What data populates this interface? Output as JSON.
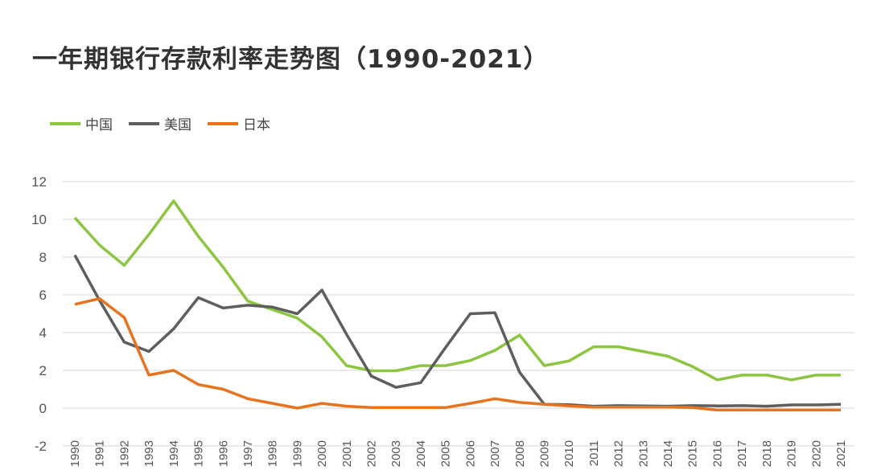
{
  "chart_data": {
    "type": "line",
    "title": "一年期银行存款利率走势图（1990-2021）",
    "xlabel": "",
    "ylabel": "",
    "ylim": [
      -2,
      12
    ],
    "yticks": [
      -2,
      0,
      2,
      4,
      6,
      8,
      10,
      12
    ],
    "grid": true,
    "legend_position": "top-left",
    "x": [
      "1990",
      "1991",
      "1992",
      "1993",
      "1994",
      "1995",
      "1996",
      "1997",
      "1998",
      "1999",
      "2000",
      "2001",
      "2002",
      "2003",
      "2004",
      "2005",
      "2006",
      "2007",
      "2008",
      "2009",
      "2010",
      "2011",
      "2012",
      "2013",
      "2014",
      "2015",
      "2016",
      "2017",
      "2018",
      "2019",
      "2020",
      "2021"
    ],
    "series": [
      {
        "name": "中国",
        "color": "#8cc53f",
        "values": [
          10.08,
          8.64,
          7.56,
          9.2,
          10.98,
          9.1,
          7.47,
          5.67,
          5.22,
          4.77,
          3.78,
          2.25,
          1.98,
          1.98,
          2.25,
          2.25,
          2.52,
          3.06,
          3.87,
          2.25,
          2.5,
          3.25,
          3.25,
          3.0,
          2.75,
          2.2,
          1.5,
          1.75,
          1.75,
          1.5,
          1.75,
          1.75
        ]
      },
      {
        "name": "美国",
        "color": "#5e5e5e",
        "values": [
          8.1,
          5.7,
          3.5,
          3.0,
          4.2,
          5.85,
          5.3,
          5.45,
          5.35,
          5.0,
          6.25,
          3.9,
          1.7,
          1.1,
          1.35,
          3.2,
          5.0,
          5.05,
          1.9,
          0.2,
          0.18,
          0.1,
          0.13,
          0.12,
          0.1,
          0.13,
          0.12,
          0.13,
          0.1,
          0.17,
          0.17,
          0.2
        ]
      },
      {
        "name": "日本",
        "color": "#e8731f",
        "values": [
          5.5,
          5.8,
          4.8,
          1.75,
          2.0,
          1.25,
          1.0,
          0.5,
          0.25,
          0.0,
          0.25,
          0.1,
          0.03,
          0.03,
          0.03,
          0.03,
          0.25,
          0.5,
          0.3,
          0.2,
          0.12,
          0.05,
          0.05,
          0.05,
          0.05,
          0.03,
          -0.1,
          -0.1,
          -0.1,
          -0.1,
          -0.1,
          -0.1
        ]
      }
    ]
  }
}
